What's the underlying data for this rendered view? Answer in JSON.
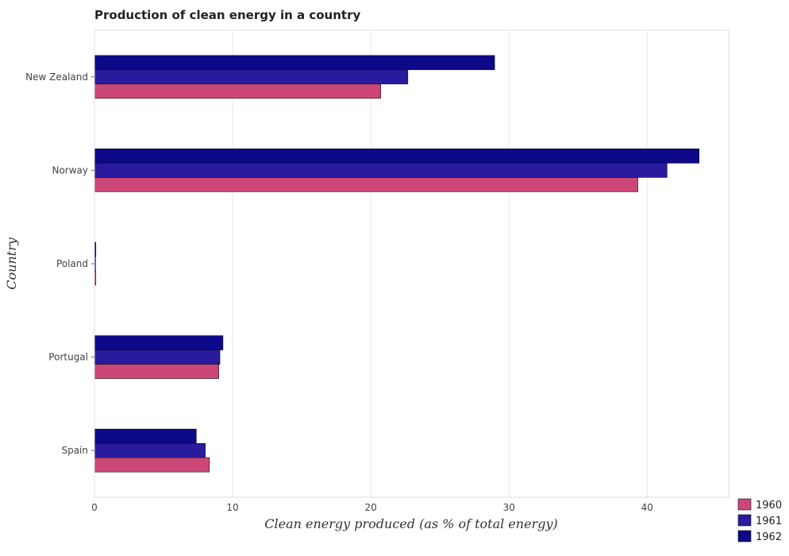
{
  "chart_data": {
    "type": "bar",
    "orientation": "horizontal",
    "title": "Production of clean energy in a country",
    "xlabel": "Clean energy produced (as % of total energy)",
    "ylabel": "Country",
    "categories": [
      "New Zealand",
      "Norway",
      "Poland",
      "Portugal",
      "Spain"
    ],
    "series": [
      {
        "name": "1960",
        "color": "#cc4778",
        "values": [
          20.72,
          39.33,
          0.1,
          9.0,
          8.32
        ]
      },
      {
        "name": "1961",
        "color": "#2a1b9e",
        "values": [
          22.68,
          41.44,
          0.08,
          9.08,
          8.02
        ]
      },
      {
        "name": "1962",
        "color": "#0d0887",
        "values": [
          28.96,
          43.76,
          0.1,
          9.3,
          7.37
        ]
      }
    ],
    "xlim": [
      0,
      45.9
    ],
    "xticks": [
      0,
      10,
      20,
      30,
      40
    ],
    "grid": true,
    "legend_position": "bottom-right"
  }
}
